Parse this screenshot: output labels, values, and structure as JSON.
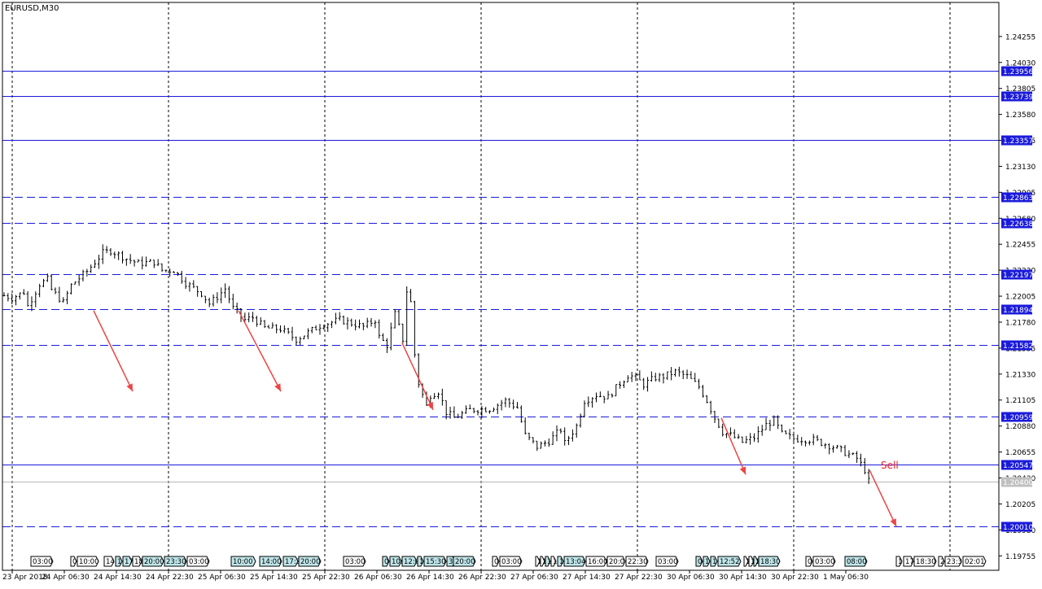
{
  "chart_data": {
    "type": "candlestick",
    "title": "EURUSD,M30",
    "y_range": [
      1.1963,
      1.2455
    ],
    "y_ticks": [
      "1.24255",
      "1.24030",
      "1.23805",
      "1.23580",
      "1.23355",
      "1.23130",
      "1.22905",
      "1.22680",
      "1.22455",
      "1.22230",
      "1.22005",
      "1.21780",
      "1.21555",
      "1.21330",
      "1.21105",
      "1.20880",
      "1.20655",
      "1.20430",
      "1.20205",
      "1.19980",
      "1.19755"
    ],
    "x_labels": [
      "23 Apr 2018",
      "24 Apr 06:30",
      "24 Apr 14:30",
      "24 Apr 22:30",
      "25 Apr 06:30",
      "25 Apr 14:30",
      "25 Apr 22:30",
      "26 Apr 06:30",
      "26 Apr 14:30",
      "26 Apr 22:30",
      "27 Apr 06:30",
      "27 Apr 14:30",
      "27 Apr 22:30",
      "30 Apr 06:30",
      "30 Apr 14:30",
      "30 Apr 22:30",
      "1 May 06:30"
    ],
    "levels": [
      {
        "value": "1.23956",
        "price": 1.23956,
        "style": "solid"
      },
      {
        "value": "1.23739",
        "price": 1.23739,
        "style": "solid"
      },
      {
        "value": "1.23357",
        "price": 1.23357,
        "style": "solid"
      },
      {
        "value": "1.22863",
        "price": 1.22863,
        "style": "dashed"
      },
      {
        "value": "1.22638",
        "price": 1.22638,
        "style": "dashed"
      },
      {
        "value": "1.22197",
        "price": 1.22197,
        "style": "dashed"
      },
      {
        "value": "1.21894",
        "price": 1.21894,
        "style": "dashed"
      },
      {
        "value": "1.21582",
        "price": 1.21582,
        "style": "dashed"
      },
      {
        "value": "1.20959",
        "price": 1.20959,
        "style": "dashed"
      },
      {
        "value": "1.20547",
        "price": 1.20547,
        "style": "solid"
      },
      {
        "value": "1.20010",
        "price": 1.2001,
        "style": "dashed"
      }
    ],
    "current_price": {
      "value": "1.20400",
      "price": 1.204
    },
    "annotation": {
      "text": "Sell",
      "color": "#e8222b"
    },
    "close_path": [
      [
        0,
        1.2201
      ],
      [
        2,
        1.2199
      ],
      [
        5,
        1.2204
      ],
      [
        6,
        1.2192
      ],
      [
        9,
        1.2211
      ],
      [
        11,
        1.2215
      ],
      [
        12,
        1.2206
      ],
      [
        15,
        1.2195
      ],
      [
        17,
        1.221
      ],
      [
        21,
        1.2222
      ],
      [
        25,
        1.2238
      ],
      [
        27,
        1.224
      ],
      [
        31,
        1.2233
      ],
      [
        34,
        1.2229
      ],
      [
        38,
        1.223
      ],
      [
        40,
        1.2223
      ],
      [
        43,
        1.2223
      ],
      [
        46,
        1.2212
      ],
      [
        50,
        1.2203
      ],
      [
        52,
        1.2194
      ],
      [
        54,
        1.22
      ],
      [
        56,
        1.2207
      ],
      [
        58,
        1.219
      ],
      [
        61,
        1.218
      ],
      [
        63,
        1.2182
      ],
      [
        66,
        1.2173
      ],
      [
        70,
        1.2172
      ],
      [
        74,
        1.2163
      ],
      [
        77,
        1.2169
      ],
      [
        80,
        1.2175
      ],
      [
        85,
        1.218
      ],
      [
        88,
        1.2177
      ],
      [
        91,
        1.2174
      ],
      [
        94,
        1.218
      ],
      [
        95,
        1.2165
      ],
      [
        97,
        1.2158
      ],
      [
        99,
        1.2185
      ],
      [
        101,
        1.2163
      ],
      [
        102,
        1.2205
      ],
      [
        103,
        1.2195
      ],
      [
        104,
        1.215
      ],
      [
        105,
        1.2125
      ],
      [
        107,
        1.2105
      ],
      [
        108,
        1.2115
      ],
      [
        110,
        1.2118
      ],
      [
        112,
        1.21
      ],
      [
        114,
        1.2095
      ],
      [
        118,
        1.2102
      ],
      [
        123,
        1.2103
      ],
      [
        127,
        1.211
      ],
      [
        130,
        1.2104
      ],
      [
        132,
        1.208
      ],
      [
        135,
        1.207
      ],
      [
        138,
        1.2075
      ],
      [
        141,
        1.2085
      ],
      [
        142,
        1.2073
      ],
      [
        145,
        1.2088
      ],
      [
        147,
        1.211
      ],
      [
        150,
        1.2115
      ],
      [
        153,
        1.2113
      ],
      [
        156,
        1.2125
      ],
      [
        158,
        1.2132
      ],
      [
        160,
        1.213
      ],
      [
        162,
        1.2124
      ],
      [
        165,
        1.213
      ],
      [
        167,
        1.2131
      ],
      [
        170,
        1.2135
      ],
      [
        173,
        1.2131
      ],
      [
        176,
        1.2122
      ],
      [
        178,
        1.211
      ],
      [
        180,
        1.2095
      ],
      [
        182,
        1.2083
      ],
      [
        184,
        1.208
      ],
      [
        187,
        1.2074
      ],
      [
        190,
        1.2078
      ],
      [
        193,
        1.2089
      ],
      [
        195,
        1.2093
      ],
      [
        197,
        1.2081
      ],
      [
        200,
        1.2077
      ],
      [
        205,
        1.2076
      ],
      [
        210,
        1.207
      ],
      [
        213,
        1.2065
      ],
      [
        216,
        1.206
      ],
      [
        218,
        1.205
      ],
      [
        219,
        1.204
      ]
    ],
    "arrows": [
      [
        115,
        1.2188,
        163,
        1.2118
      ],
      [
        293,
        1.2188,
        345,
        1.2118
      ],
      [
        494,
        1.216,
        532,
        1.2102
      ],
      [
        886,
        1.2095,
        916,
        1.2046
      ],
      [
        1068,
        1.205,
        1101,
        1.2001
      ]
    ],
    "time_tags": [
      {
        "t": "03:00",
        "x": 38,
        "w": 27,
        "hl": false
      },
      {
        "t": "0",
        "x": 87,
        "w": 7,
        "hl": false
      },
      {
        "t": "10:00",
        "x": 95,
        "w": 26,
        "hl": false
      },
      {
        "t": "14",
        "x": 128,
        "w": 12,
        "hl": false
      },
      {
        "t": "1",
        "x": 142,
        "w": 8,
        "hl": true
      },
      {
        "t": "17",
        "x": 151,
        "w": 11,
        "hl": true
      },
      {
        "t": "18",
        "x": 163,
        "w": 11,
        "hl": false
      },
      {
        "t": "20:00",
        "x": 175,
        "w": 26,
        "hl": true
      },
      {
        "t": "23:30",
        "x": 202,
        "w": 27,
        "hl": true
      },
      {
        "t": "03:00",
        "x": 230,
        "w": 27,
        "hl": false
      },
      {
        "t": "10:00",
        "x": 284,
        "w": 30,
        "hl": true
      },
      {
        "t": "14:00",
        "x": 319,
        "w": 27,
        "hl": true
      },
      {
        "t": "17:3",
        "x": 348,
        "w": 18,
        "hl": true
      },
      {
        "t": "20:00",
        "x": 367,
        "w": 27,
        "hl": true
      },
      {
        "t": "03:00",
        "x": 422,
        "w": 27,
        "hl": false
      },
      {
        "t": "0",
        "x": 470,
        "w": 8,
        "hl": true
      },
      {
        "t": "10:",
        "x": 479,
        "w": 14,
        "hl": true
      },
      {
        "t": "12:0",
        "x": 494,
        "w": 18,
        "hl": true
      },
      {
        "t": "1",
        "x": 513,
        "w": 7,
        "hl": true
      },
      {
        "t": "15:30",
        "x": 521,
        "w": 27,
        "hl": true
      },
      {
        "t": "3:",
        "x": 549,
        "w": 10,
        "hl": true
      },
      {
        "t": "20:00",
        "x": 557,
        "w": 27,
        "hl": true
      },
      {
        "t": "0",
        "x": 605,
        "w": 8,
        "hl": false
      },
      {
        "t": "03:00",
        "x": 614,
        "w": 27,
        "hl": false
      },
      {
        "t": "1",
        "x": 658,
        "w": 5,
        "hl": false
      },
      {
        "t": "1",
        "x": 664,
        "w": 5,
        "hl": false
      },
      {
        "t": "1",
        "x": 670,
        "w": 6,
        "hl": true
      },
      {
        "t": "1",
        "x": 677,
        "w": 6,
        "hl": false
      },
      {
        "t": "1",
        "x": 685,
        "w": 7,
        "hl": true
      },
      {
        "t": "13:04",
        "x": 693,
        "w": 26,
        "hl": true
      },
      {
        "t": "16:00",
        "x": 720,
        "w": 25,
        "hl": false
      },
      {
        "t": "20:0",
        "x": 746,
        "w": 22,
        "hl": false
      },
      {
        "t": "22:30",
        "x": 769,
        "w": 27,
        "hl": false
      },
      {
        "t": "03:00",
        "x": 806,
        "w": 27,
        "hl": false
      },
      {
        "t": "0",
        "x": 855,
        "w": 8,
        "hl": true
      },
      {
        "t": "1",
        "x": 864,
        "w": 8,
        "hl": true
      },
      {
        "t": "1",
        "x": 873,
        "w": 8,
        "hl": true
      },
      {
        "t": "12:52",
        "x": 882,
        "w": 28,
        "hl": true
      },
      {
        "t": "1",
        "x": 914,
        "w": 5,
        "hl": false
      },
      {
        "t": "1",
        "x": 920,
        "w": 6,
        "hl": false
      },
      {
        "t": "1",
        "x": 926,
        "w": 5,
        "hl": true
      },
      {
        "t": "18:30",
        "x": 932,
        "w": 26,
        "hl": true
      },
      {
        "t": "0",
        "x": 990,
        "w": 8,
        "hl": false
      },
      {
        "t": "03:00",
        "x": 999,
        "w": 27,
        "hl": false
      },
      {
        "t": "08:00",
        "x": 1038,
        "w": 27,
        "hl": true
      },
      {
        "t": "1",
        "x": 1101,
        "w": 7,
        "hl": false
      },
      {
        "t": "17",
        "x": 1110,
        "w": 12,
        "hl": false
      },
      {
        "t": "18:30",
        "x": 1123,
        "w": 27,
        "hl": false
      },
      {
        "t": "2",
        "x": 1153,
        "w": 7,
        "hl": false
      },
      {
        "t": "23:3",
        "x": 1161,
        "w": 20,
        "hl": false
      },
      {
        "t": "02:01",
        "x": 1183,
        "w": 28,
        "hl": false
      }
    ]
  }
}
